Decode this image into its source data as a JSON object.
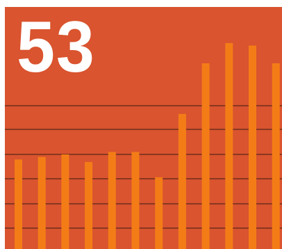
{
  "headline": {
    "value": "53"
  },
  "colors": {
    "background": "#d9542f",
    "bar": "#f47c17",
    "gridline": "#3a1a10",
    "text": "#ffffff"
  },
  "chart_data": {
    "type": "bar",
    "categories": [
      "",
      "",
      "",
      "",
      "",
      "",
      "",
      "",
      "",
      "",
      "",
      ""
    ],
    "values": [
      37,
      38,
      39,
      36,
      40,
      40,
      30,
      55,
      75,
      83,
      82,
      75
    ],
    "title": "",
    "xlabel": "",
    "ylabel": "",
    "ylim": [
      0,
      100
    ],
    "gridlines": [
      0,
      10,
      20,
      30,
      40,
      50,
      60,
      70,
      80,
      90
    ],
    "grid": true,
    "legend": "none"
  }
}
